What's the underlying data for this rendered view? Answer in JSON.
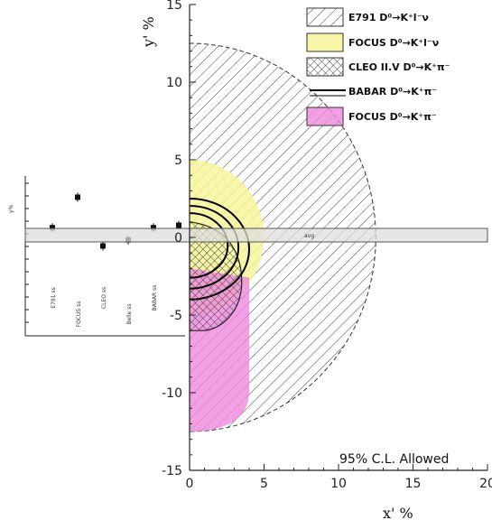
{
  "chart_data": [
    {
      "type": "area",
      "title": "",
      "xlabel": "x' %",
      "ylabel": "y' %",
      "xlim": [
        0,
        20
      ],
      "ylim": [
        -15,
        15
      ],
      "x_ticks": [
        "0",
        "5",
        "10",
        "15",
        "20"
      ],
      "y_ticks": [
        "15",
        "10",
        "5",
        "0",
        "-5",
        "-10",
        "-15"
      ],
      "annotation": "95% C.L. Allowed",
      "legend_position": "top-right",
      "legend": [
        {
          "label": "E791 D⁰→K⁺l⁻ν",
          "style": "diagonal-hatch"
        },
        {
          "label": "FOCUS D⁰→K⁺l⁻ν",
          "style": "yellow-fill"
        },
        {
          "label": "CLEO II.V D⁰→K⁺π⁻",
          "style": "crosshatch"
        },
        {
          "label": "BABAR D⁰→K⁺π⁻",
          "style": "black-outline"
        },
        {
          "label": "FOCUS D⁰→K⁺π⁻",
          "style": "magenta-fill"
        }
      ],
      "regions": [
        {
          "label": "E791 D⁰→K⁺l⁻ν",
          "shape": "half-disk",
          "radius": 12.5
        },
        {
          "label": "FOCUS D⁰→K⁺l⁻ν",
          "shape": "half-disk",
          "radius": 5.0
        },
        {
          "label": "FOCUS D⁰→K⁺π⁻",
          "shape": "band",
          "x_range": [
            0,
            4
          ],
          "y_range": [
            -12.5,
            -2
          ]
        },
        {
          "label": "CLEO II.V D⁰→K⁺π⁻",
          "shape": "contour",
          "x_range": [
            0,
            3.5
          ],
          "y_range": [
            -6,
            1
          ]
        },
        {
          "label": "BABAR D⁰→K⁺π⁻",
          "shape": "contour",
          "x_range": [
            0,
            4
          ],
          "y_range": [
            -4,
            2.5
          ]
        }
      ]
    },
    {
      "type": "scatter",
      "inset": true,
      "ylabel": "y%",
      "band_label": "avg",
      "categories": [
        "E791",
        "FOCUS",
        "CLEO",
        "Belle",
        "BABAR",
        ""
      ],
      "category_labels": [
        "E791 ss",
        "FOCUS ss",
        "CLEO ss",
        "Belle ss",
        "BABAR ss",
        ""
      ],
      "values": [
        0.8,
        3.3,
        -0.7,
        -0.2,
        0.8,
        1.0
      ]
    }
  ],
  "colors": {
    "focus_semileptonic": "#f7f49a",
    "focus_hadronic": "#ee88dd",
    "babar": "#000000",
    "hatch": "#333333",
    "band": "#dedede"
  }
}
